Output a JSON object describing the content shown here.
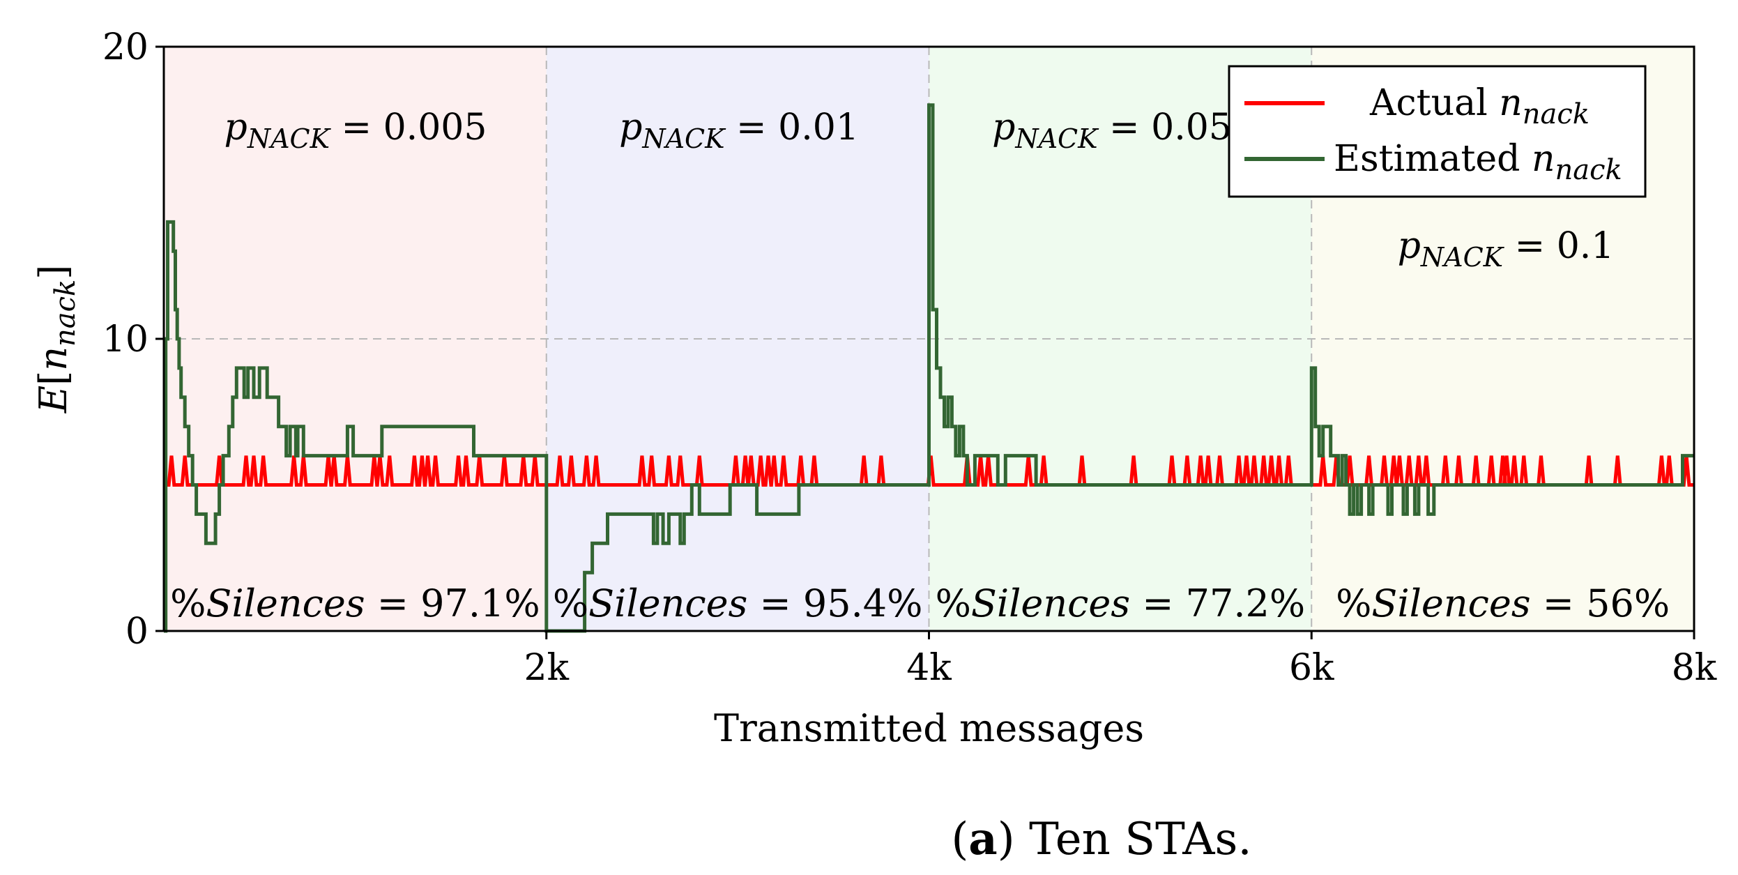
{
  "chart_data": {
    "type": "line",
    "title": "",
    "caption": {
      "label": "a",
      "text": "Ten STAs."
    },
    "xlabel": "Transmitted messages",
    "ylabel": {
      "base": "E",
      "open": "[",
      "var": "n",
      "sub": "nack",
      "close": "]"
    },
    "xlim": [
      0,
      8000
    ],
    "ylim": [
      0,
      20
    ],
    "x_ticks": [
      {
        "value": 2000,
        "label": "2k"
      },
      {
        "value": 4000,
        "label": "4k"
      },
      {
        "value": 6000,
        "label": "6k"
      },
      {
        "value": 8000,
        "label": "8k"
      }
    ],
    "y_ticks": [
      {
        "value": 0,
        "label": "0"
      },
      {
        "value": 10,
        "label": "10"
      },
      {
        "value": 20,
        "label": "20"
      }
    ],
    "grid": true,
    "regions": [
      {
        "x0": 0,
        "x1": 2000,
        "color": "#fdf0f0",
        "p_label": {
          "var": "p",
          "sub": "NACK",
          "rhs": " = 0.005"
        },
        "silence": {
          "prefix": "%",
          "word": "Silences",
          "rhs": " = 97.1%"
        }
      },
      {
        "x0": 2000,
        "x1": 4000,
        "color": "#efeffb",
        "p_label": {
          "var": "p",
          "sub": "NACK",
          "rhs": " = 0.01"
        },
        "silence": {
          "prefix": "%",
          "word": "Silences",
          "rhs": " = 95.4%"
        }
      },
      {
        "x0": 4000,
        "x1": 6000,
        "color": "#effbef",
        "p_label": {
          "var": "p",
          "sub": "NACK",
          "rhs": " = 0.05"
        },
        "silence": {
          "prefix": "%",
          "word": "Silences",
          "rhs": " = 77.2%"
        }
      },
      {
        "x0": 6000,
        "x1": 8000,
        "color": "#fbfbf0",
        "p_label": {
          "var": "p",
          "sub": "NACK",
          "rhs": " = 0.1"
        },
        "silence": {
          "prefix": "%",
          "word": "Silences",
          "rhs": " = 56%"
        }
      }
    ],
    "legend": {
      "position": "top-right"
    },
    "series": [
      {
        "name": "Actual n_nack",
        "legend_text": "Actual ",
        "legend_var": "n",
        "legend_sub": "nack",
        "color": "#ff0000",
        "base": 5,
        "spike_value": 6,
        "spikes": [
          40,
          110,
          290,
          430,
          470,
          520,
          680,
          730,
          860,
          890,
          960,
          1100,
          1130,
          1180,
          1310,
          1350,
          1380,
          1420,
          1540,
          1580,
          1650,
          1780,
          1880,
          1940,
          2070,
          2130,
          2210,
          2260,
          2500,
          2550,
          2640,
          2700,
          2800,
          2990,
          3040,
          3070,
          3120,
          3160,
          3190,
          3240,
          3330,
          3400,
          3660,
          3750,
          4010,
          4200,
          4270,
          4310,
          4520,
          4600,
          4800,
          5070,
          5270,
          5350,
          5420,
          5460,
          5520,
          5620,
          5660,
          5700,
          5750,
          5790,
          5830,
          5880,
          6060,
          6130,
          6200,
          6300,
          6380,
          6430,
          6460,
          6510,
          6560,
          6600,
          6700,
          6770,
          6860,
          6940,
          7000,
          7020,
          7060,
          7110,
          7200,
          7450,
          7600,
          7830,
          7870,
          7960
        ]
      },
      {
        "name": "Estimated n_nack",
        "legend_text": "Estimated ",
        "legend_var": "n",
        "legend_sub": "nack",
        "color": "#336633",
        "points": [
          [
            0,
            0
          ],
          [
            10,
            0
          ],
          [
            10,
            10
          ],
          [
            20,
            10
          ],
          [
            20,
            14
          ],
          [
            50,
            14
          ],
          [
            50,
            13
          ],
          [
            60,
            13
          ],
          [
            60,
            11
          ],
          [
            70,
            11
          ],
          [
            70,
            10
          ],
          [
            80,
            10
          ],
          [
            80,
            9
          ],
          [
            90,
            9
          ],
          [
            90,
            8
          ],
          [
            110,
            8
          ],
          [
            110,
            7
          ],
          [
            130,
            7
          ],
          [
            130,
            6
          ],
          [
            150,
            6
          ],
          [
            150,
            5
          ],
          [
            170,
            5
          ],
          [
            170,
            4
          ],
          [
            220,
            4
          ],
          [
            220,
            3
          ],
          [
            270,
            3
          ],
          [
            270,
            4
          ],
          [
            290,
            4
          ],
          [
            290,
            5
          ],
          [
            310,
            5
          ],
          [
            310,
            6
          ],
          [
            340,
            6
          ],
          [
            340,
            7
          ],
          [
            360,
            7
          ],
          [
            360,
            8
          ],
          [
            380,
            8
          ],
          [
            380,
            9
          ],
          [
            420,
            9
          ],
          [
            420,
            8
          ],
          [
            440,
            8
          ],
          [
            440,
            9
          ],
          [
            470,
            9
          ],
          [
            470,
            8
          ],
          [
            500,
            8
          ],
          [
            500,
            9
          ],
          [
            540,
            9
          ],
          [
            540,
            8
          ],
          [
            600,
            8
          ],
          [
            600,
            7
          ],
          [
            640,
            7
          ],
          [
            640,
            6
          ],
          [
            660,
            6
          ],
          [
            660,
            7
          ],
          [
            690,
            7
          ],
          [
            690,
            6
          ],
          [
            700,
            6
          ],
          [
            700,
            7
          ],
          [
            730,
            7
          ],
          [
            730,
            6
          ],
          [
            960,
            6
          ],
          [
            960,
            7
          ],
          [
            990,
            7
          ],
          [
            990,
            6
          ],
          [
            1140,
            6
          ],
          [
            1140,
            7
          ],
          [
            1620,
            7
          ],
          [
            1620,
            6
          ],
          [
            2000,
            6
          ],
          [
            2000,
            0
          ],
          [
            2200,
            0
          ],
          [
            2200,
            2
          ],
          [
            2240,
            2
          ],
          [
            2240,
            3
          ],
          [
            2320,
            3
          ],
          [
            2320,
            4
          ],
          [
            2560,
            4
          ],
          [
            2560,
            3
          ],
          [
            2580,
            3
          ],
          [
            2580,
            4
          ],
          [
            2610,
            4
          ],
          [
            2610,
            3
          ],
          [
            2640,
            3
          ],
          [
            2640,
            4
          ],
          [
            2700,
            4
          ],
          [
            2700,
            3
          ],
          [
            2720,
            3
          ],
          [
            2720,
            4
          ],
          [
            2760,
            4
          ],
          [
            2760,
            5
          ],
          [
            2800,
            5
          ],
          [
            2800,
            4
          ],
          [
            2960,
            4
          ],
          [
            2960,
            5
          ],
          [
            3100,
            5
          ],
          [
            3100,
            4
          ],
          [
            3320,
            4
          ],
          [
            3320,
            5
          ],
          [
            4000,
            5
          ],
          [
            4000,
            18
          ],
          [
            4020,
            18
          ],
          [
            4020,
            11
          ],
          [
            4040,
            11
          ],
          [
            4040,
            9
          ],
          [
            4060,
            9
          ],
          [
            4060,
            8
          ],
          [
            4080,
            8
          ],
          [
            4080,
            7
          ],
          [
            4100,
            7
          ],
          [
            4100,
            8
          ],
          [
            4120,
            8
          ],
          [
            4120,
            7
          ],
          [
            4140,
            7
          ],
          [
            4140,
            6
          ],
          [
            4160,
            6
          ],
          [
            4160,
            7
          ],
          [
            4180,
            7
          ],
          [
            4180,
            6
          ],
          [
            4200,
            6
          ],
          [
            4200,
            5
          ],
          [
            4240,
            5
          ],
          [
            4240,
            6
          ],
          [
            4360,
            6
          ],
          [
            4360,
            5
          ],
          [
            4400,
            5
          ],
          [
            4400,
            6
          ],
          [
            4560,
            6
          ],
          [
            4560,
            5
          ],
          [
            6000,
            5
          ],
          [
            6000,
            9
          ],
          [
            6020,
            9
          ],
          [
            6020,
            7
          ],
          [
            6040,
            7
          ],
          [
            6040,
            6
          ],
          [
            6060,
            6
          ],
          [
            6060,
            7
          ],
          [
            6100,
            7
          ],
          [
            6100,
            6
          ],
          [
            6140,
            6
          ],
          [
            6140,
            5
          ],
          [
            6160,
            5
          ],
          [
            6160,
            6
          ],
          [
            6180,
            6
          ],
          [
            6180,
            5
          ],
          [
            6200,
            5
          ],
          [
            6200,
            4
          ],
          [
            6220,
            4
          ],
          [
            6220,
            5
          ],
          [
            6240,
            5
          ],
          [
            6240,
            4
          ],
          [
            6260,
            4
          ],
          [
            6260,
            5
          ],
          [
            6300,
            5
          ],
          [
            6300,
            4
          ],
          [
            6320,
            4
          ],
          [
            6320,
            5
          ],
          [
            6400,
            5
          ],
          [
            6400,
            4
          ],
          [
            6420,
            4
          ],
          [
            6420,
            5
          ],
          [
            6480,
            5
          ],
          [
            6480,
            4
          ],
          [
            6500,
            4
          ],
          [
            6500,
            5
          ],
          [
            6540,
            5
          ],
          [
            6540,
            4
          ],
          [
            6560,
            4
          ],
          [
            6560,
            5
          ],
          [
            6610,
            5
          ],
          [
            6610,
            4
          ],
          [
            6640,
            4
          ],
          [
            6640,
            5
          ],
          [
            7940,
            5
          ],
          [
            7940,
            6
          ],
          [
            8000,
            6
          ]
        ]
      }
    ]
  }
}
